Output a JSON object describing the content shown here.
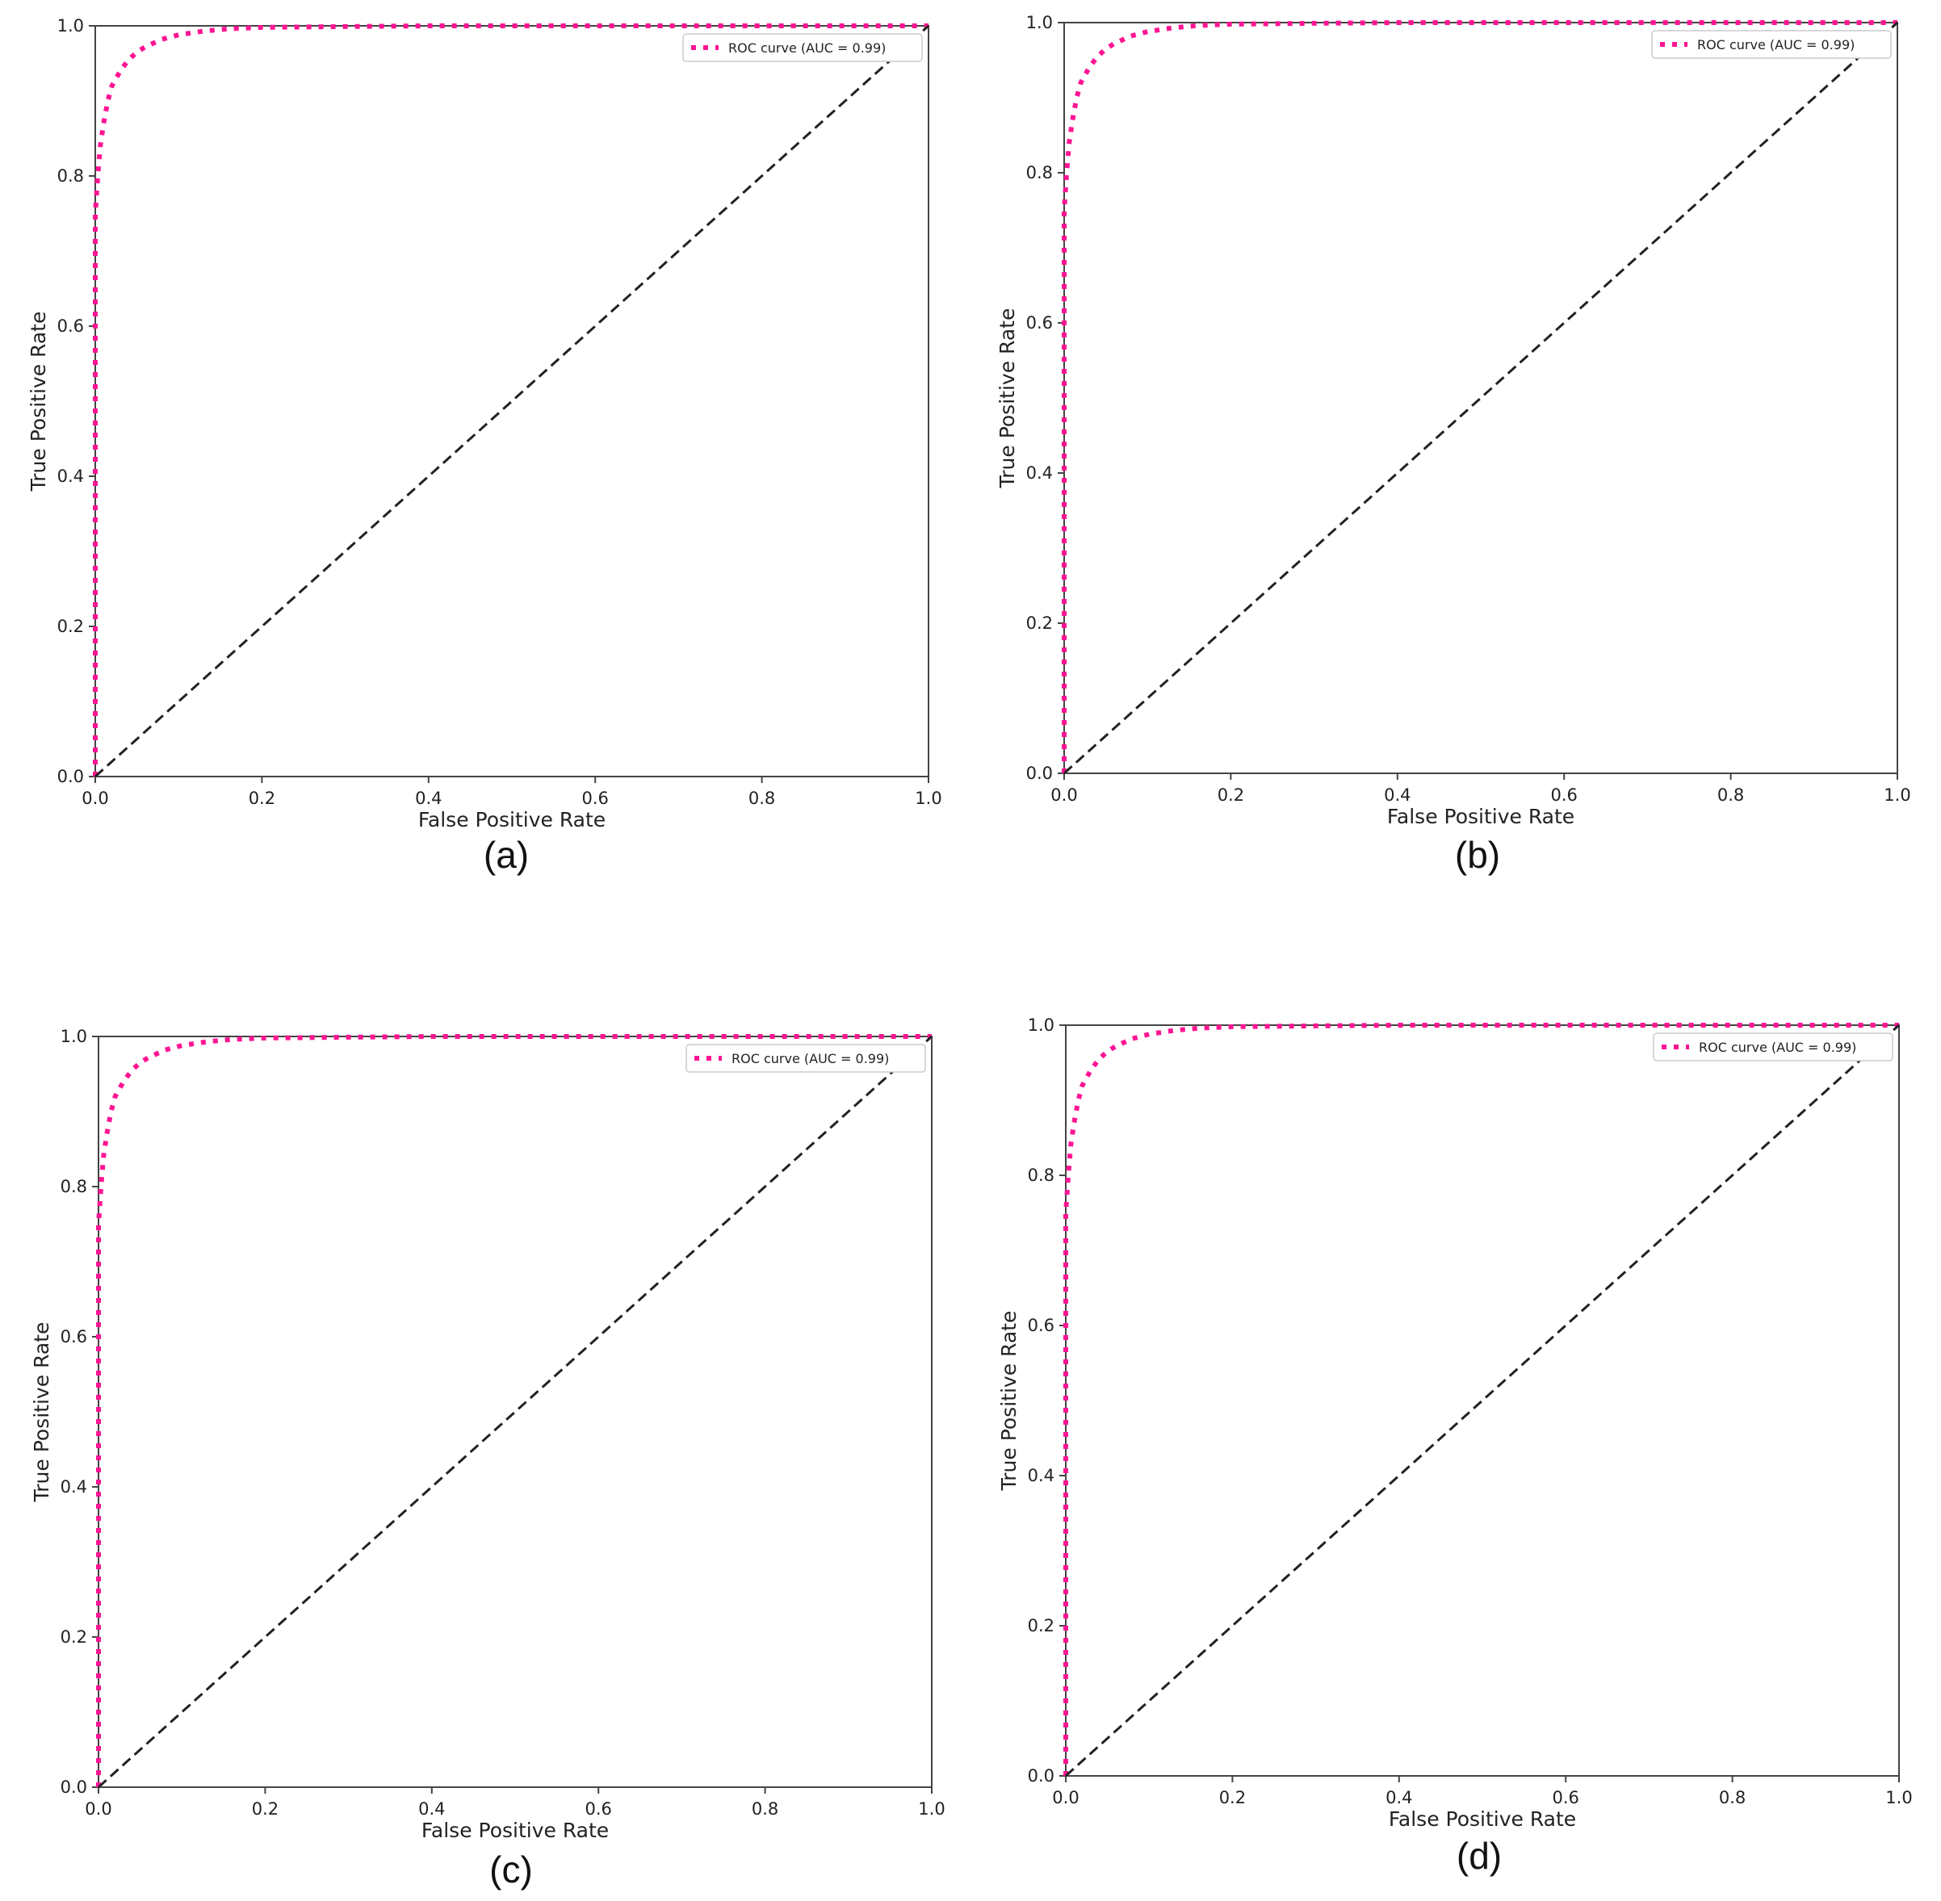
{
  "chart_data": [
    {
      "type": "line",
      "panel_label": "(a)",
      "xlabel": "False Positive Rate",
      "ylabel": "True Positive Rate",
      "xlim": [
        0.0,
        1.0
      ],
      "ylim": [
        0.0,
        1.0
      ],
      "xticks": [
        "0.0",
        "0.2",
        "0.4",
        "0.6",
        "0.8",
        "1.0"
      ],
      "yticks": [
        "0.0",
        "0.2",
        "0.4",
        "0.6",
        "0.8",
        "1.0"
      ],
      "legend_position": "upper-right",
      "grid": false,
      "series": [
        {
          "name": "ROC curve (AUC = 0.99)",
          "style": "dotted",
          "color": "#ff1493",
          "x": [
            0.0,
            0.0,
            0.003,
            0.006,
            0.01,
            0.015,
            0.02,
            0.03,
            0.04,
            0.05,
            0.06,
            0.08,
            0.1,
            0.13,
            0.16,
            0.2,
            0.3,
            0.4,
            0.5,
            0.6,
            0.7,
            0.8,
            0.9,
            1.0
          ],
          "y": [
            0.0,
            0.75,
            0.8,
            0.84,
            0.87,
            0.9,
            0.92,
            0.94,
            0.955,
            0.965,
            0.972,
            0.982,
            0.988,
            0.993,
            0.996,
            0.998,
            0.999,
            1.0,
            1.0,
            1.0,
            1.0,
            1.0,
            1.0,
            1.0
          ]
        },
        {
          "name": "",
          "style": "dashed",
          "color": "#222222",
          "x": [
            0.0,
            1.0
          ],
          "y": [
            0.0,
            1.0
          ]
        }
      ]
    },
    {
      "type": "line",
      "panel_label": "(b)",
      "xlabel": "False Positive Rate",
      "ylabel": "True Positive Rate",
      "xlim": [
        0.0,
        1.0
      ],
      "ylim": [
        0.0,
        1.0
      ],
      "xticks": [
        "0.0",
        "0.2",
        "0.4",
        "0.6",
        "0.8",
        "1.0"
      ],
      "yticks": [
        "0.0",
        "0.2",
        "0.4",
        "0.6",
        "0.8",
        "1.0"
      ],
      "legend_position": "upper-right",
      "grid": false,
      "series": [
        {
          "name": "ROC curve (AUC = 0.99)",
          "style": "dotted",
          "color": "#ff1493",
          "x": [
            0.0,
            0.0,
            0.003,
            0.006,
            0.01,
            0.015,
            0.02,
            0.03,
            0.04,
            0.05,
            0.06,
            0.08,
            0.1,
            0.13,
            0.16,
            0.2,
            0.3,
            0.4,
            0.5,
            0.6,
            0.7,
            0.8,
            0.9,
            1.0
          ],
          "y": [
            0.0,
            0.75,
            0.8,
            0.84,
            0.87,
            0.9,
            0.92,
            0.94,
            0.955,
            0.965,
            0.972,
            0.982,
            0.988,
            0.993,
            0.996,
            0.998,
            0.999,
            1.0,
            1.0,
            1.0,
            1.0,
            1.0,
            1.0,
            1.0
          ]
        },
        {
          "name": "",
          "style": "dashed",
          "color": "#222222",
          "x": [
            0.0,
            1.0
          ],
          "y": [
            0.0,
            1.0
          ]
        }
      ]
    },
    {
      "type": "line",
      "panel_label": "(c)",
      "xlabel": "False Positive Rate",
      "ylabel": "True Positive Rate",
      "xlim": [
        0.0,
        1.0
      ],
      "ylim": [
        0.0,
        1.0
      ],
      "xticks": [
        "0.0",
        "0.2",
        "0.4",
        "0.6",
        "0.8",
        "1.0"
      ],
      "yticks": [
        "0.0",
        "0.2",
        "0.4",
        "0.6",
        "0.8",
        "1.0"
      ],
      "legend_position": "upper-right",
      "grid": false,
      "series": [
        {
          "name": "ROC curve (AUC = 0.99)",
          "style": "dotted",
          "color": "#ff1493",
          "x": [
            0.0,
            0.0,
            0.003,
            0.006,
            0.01,
            0.015,
            0.02,
            0.03,
            0.04,
            0.05,
            0.06,
            0.08,
            0.1,
            0.13,
            0.16,
            0.2,
            0.3,
            0.4,
            0.5,
            0.6,
            0.7,
            0.8,
            0.9,
            1.0
          ],
          "y": [
            0.0,
            0.75,
            0.8,
            0.84,
            0.87,
            0.9,
            0.92,
            0.94,
            0.955,
            0.965,
            0.972,
            0.982,
            0.988,
            0.993,
            0.996,
            0.998,
            0.999,
            1.0,
            1.0,
            1.0,
            1.0,
            1.0,
            1.0,
            1.0
          ]
        },
        {
          "name": "",
          "style": "dashed",
          "color": "#222222",
          "x": [
            0.0,
            1.0
          ],
          "y": [
            0.0,
            1.0
          ]
        }
      ]
    },
    {
      "type": "line",
      "panel_label": "(d)",
      "xlabel": "False Positive Rate",
      "ylabel": "True Positive Rate",
      "xlim": [
        0.0,
        1.0
      ],
      "ylim": [
        0.0,
        1.0
      ],
      "xticks": [
        "0.0",
        "0.2",
        "0.4",
        "0.6",
        "0.8",
        "1.0"
      ],
      "yticks": [
        "0.0",
        "0.2",
        "0.4",
        "0.6",
        "0.8",
        "1.0"
      ],
      "legend_position": "upper-right",
      "grid": false,
      "series": [
        {
          "name": "ROC curve (AUC = 0.99)",
          "style": "dotted",
          "color": "#ff1493",
          "x": [
            0.0,
            0.0,
            0.003,
            0.006,
            0.01,
            0.015,
            0.02,
            0.03,
            0.04,
            0.05,
            0.06,
            0.08,
            0.1,
            0.13,
            0.16,
            0.2,
            0.3,
            0.4,
            0.5,
            0.6,
            0.7,
            0.8,
            0.9,
            1.0
          ],
          "y": [
            0.0,
            0.75,
            0.8,
            0.84,
            0.87,
            0.9,
            0.92,
            0.94,
            0.955,
            0.965,
            0.972,
            0.982,
            0.988,
            0.993,
            0.996,
            0.998,
            0.999,
            1.0,
            1.0,
            1.0,
            1.0,
            1.0,
            1.0,
            1.0
          ]
        },
        {
          "name": "",
          "style": "dashed",
          "color": "#222222",
          "x": [
            0.0,
            1.0
          ],
          "y": [
            0.0,
            1.0
          ]
        }
      ]
    }
  ]
}
